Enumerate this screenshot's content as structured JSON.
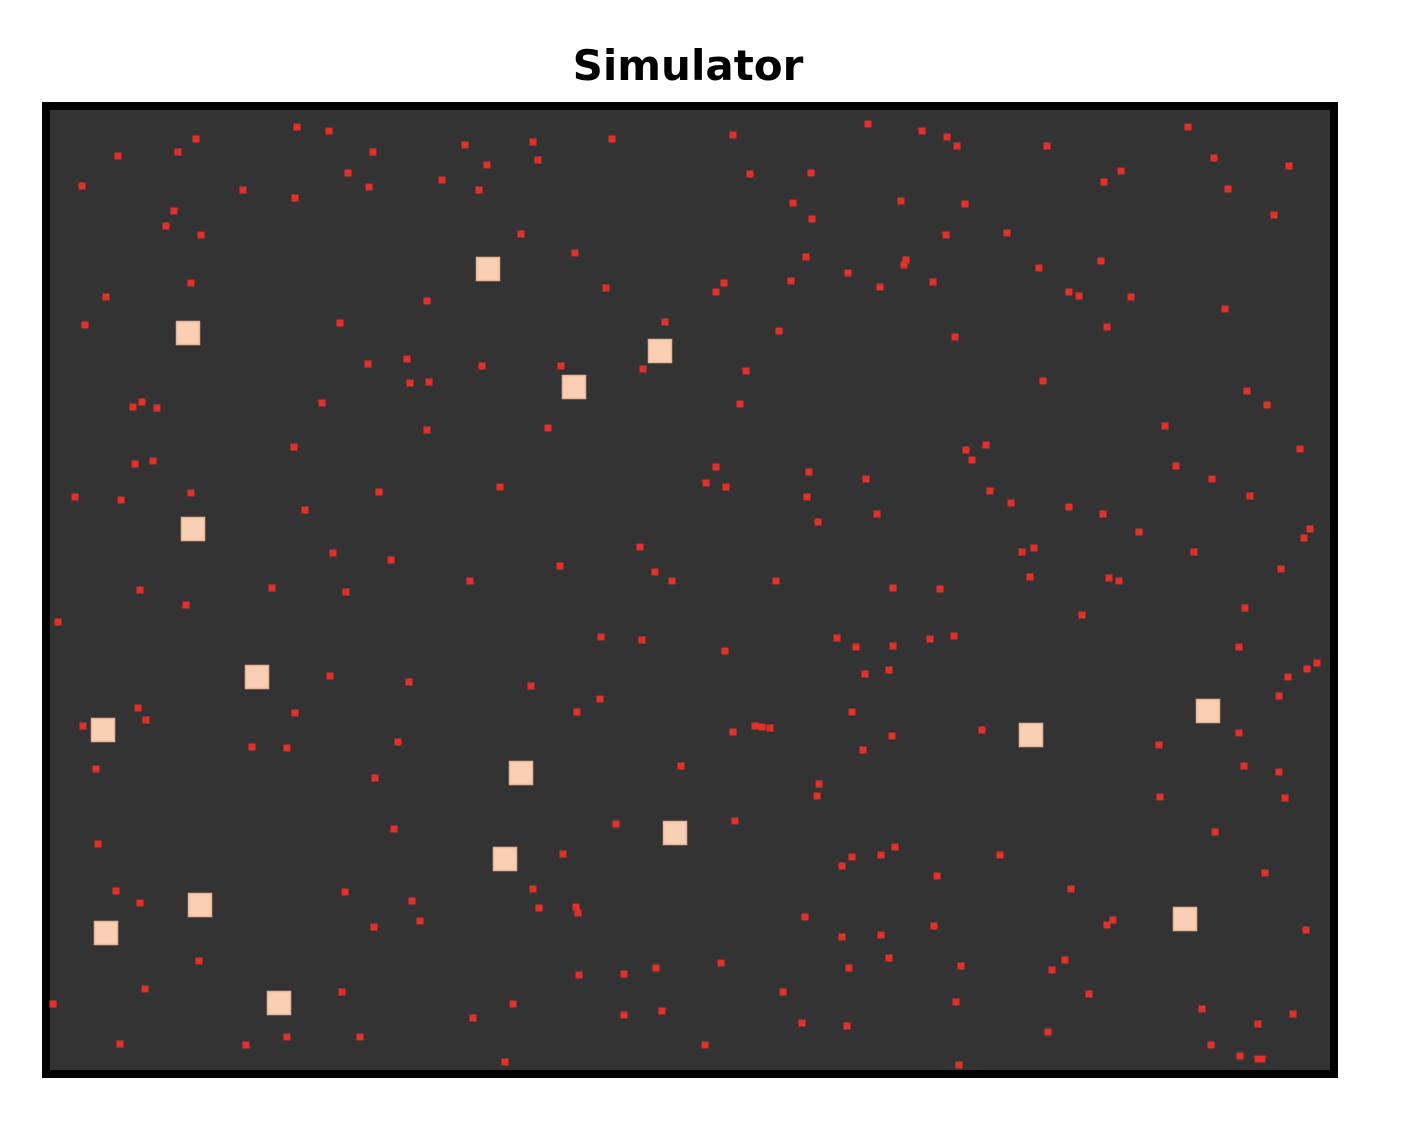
{
  "header": {
    "title": "Simulator"
  }
}
